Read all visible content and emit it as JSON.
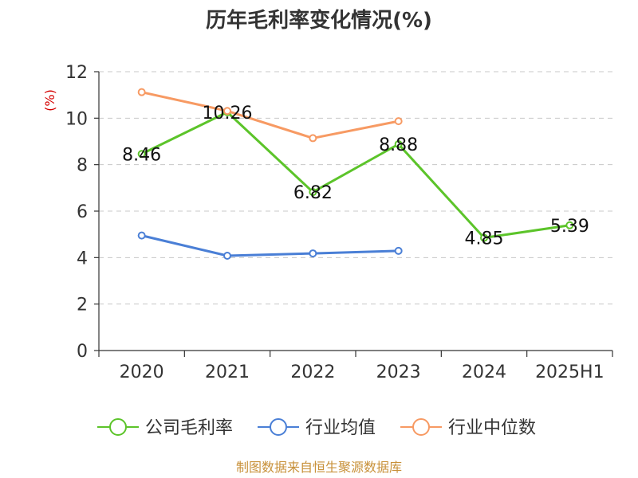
{
  "chart_data": {
    "type": "line",
    "title": "历年毛利率变化情况(%)",
    "ylabel": "(%)",
    "xlabel": "",
    "categories": [
      "2020",
      "2021",
      "2022",
      "2023",
      "2024",
      "2025H1"
    ],
    "ylim": [
      0,
      12
    ],
    "yticks": [
      0,
      2,
      4,
      6,
      8,
      10,
      12
    ],
    "grid": "horizontal-dashed",
    "legend_position": "bottom",
    "series": [
      {
        "name": "公司毛利率",
        "color": "#5cc42a",
        "values": [
          8.46,
          10.26,
          6.82,
          8.88,
          4.85,
          5.39
        ],
        "labels": [
          "8.46",
          "10.26",
          "6.82",
          "8.88",
          "4.85",
          "5.39"
        ]
      },
      {
        "name": "行业均值",
        "color": "#4a7fd6",
        "values": [
          4.95,
          4.08,
          4.18,
          4.29,
          null,
          null
        ]
      },
      {
        "name": "行业中位数",
        "color": "#f79a63",
        "values": [
          11.12,
          10.31,
          9.14,
          9.87,
          null,
          null
        ]
      }
    ],
    "source": "制图数据来自恒生聚源数据库"
  }
}
